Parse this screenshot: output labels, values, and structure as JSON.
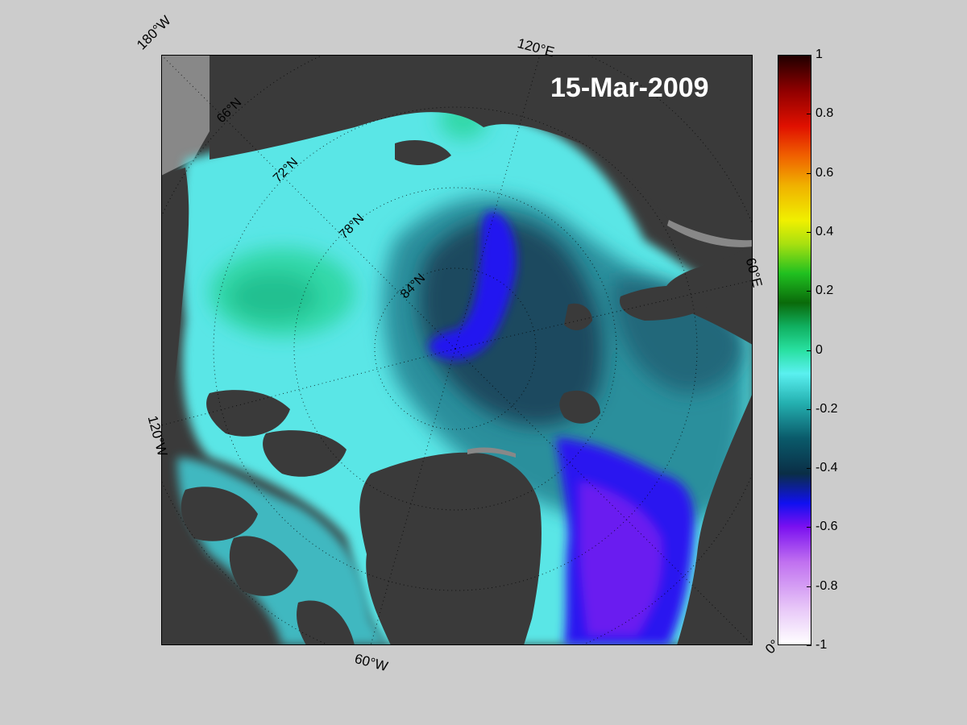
{
  "map": {
    "date_label": "15-Mar-2009",
    "lon_labels": [
      "180°W",
      "120°E",
      "60°E",
      "0°",
      "60°W",
      "120°W"
    ],
    "lat_labels": [
      "66°N",
      "72°N",
      "78°N",
      "84°N"
    ]
  },
  "colorbar": {
    "min": -1,
    "max": 1,
    "ticks": [
      "1",
      "0.8",
      "0.6",
      "0.4",
      "0.2",
      "0",
      "-0.2",
      "-0.4",
      "-0.6",
      "-0.8",
      "-1"
    ]
  },
  "colors": {
    "land": "#3a3a3a",
    "land_light": "#888888",
    "ice_cyan": "#5ae6e6",
    "ice_teal": "#30a8b0",
    "ice_dark": "#1f5868",
    "ice_blue": "#2018f0",
    "ice_violet": "#7a20f0",
    "background": "#cccccc"
  }
}
